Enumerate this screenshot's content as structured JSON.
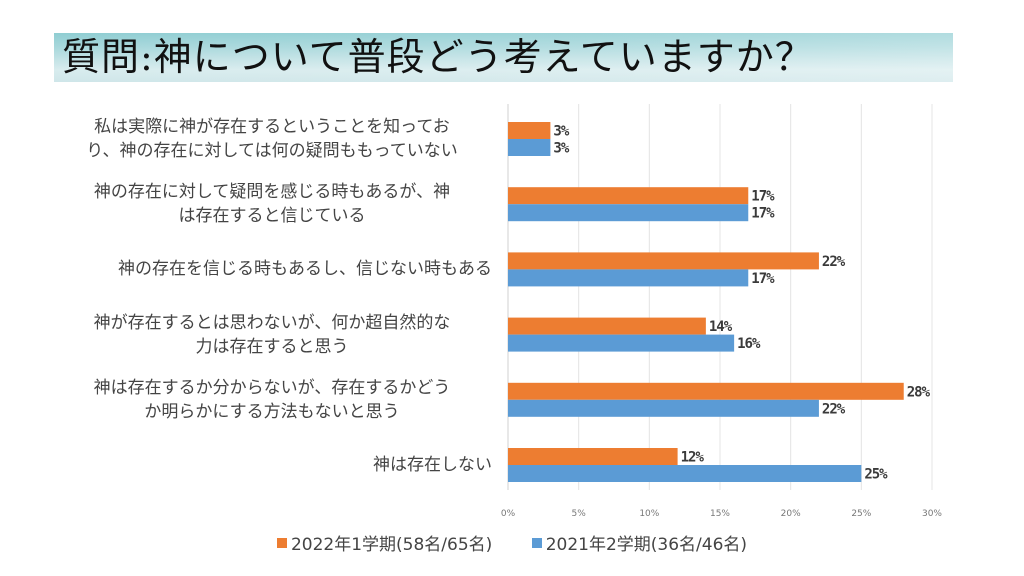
{
  "title": "質問:神について普段どう考えていますか？",
  "chart_data": {
    "type": "bar",
    "orientation": "horizontal",
    "title": "質問:神について普段どう考えていますか？",
    "categories": [
      "私は実際に神が存在するということを知っており、神の存在に対しては何の疑問ももっていない",
      "神の存在に対して疑問を感じる時もあるが、神は存在すると信じている",
      "神の存在を信じる時もあるし、信じない時もある",
      "神が存在するとは思わないが、何か超自然的な力は存在すると思う",
      "神は存在するか分からないが、存在するかどうか明らかにする方法もないと思う",
      "神は存在しない"
    ],
    "category_lines": [
      [
        "私は実際に神が存在するということを知ってお",
        "り、神の存在に対しては何の疑問ももっていない"
      ],
      [
        "神の存在に対して疑問を感じる時もあるが、神",
        "は存在すると信じている"
      ],
      [
        "神の存在を信じる時もあるし、信じない時もある"
      ],
      [
        "神が存在するとは思わないが、何か超自然的な",
        "力は存在すると思う"
      ],
      [
        "神は存在するか分からないが、存在するかどう",
        "か明らかにする方法もないと思う"
      ],
      [
        "神は存在しない"
      ]
    ],
    "series": [
      {
        "name": "2022年1学期(58名/65名)",
        "color": "#ED7D31",
        "values": [
          3,
          17,
          22,
          14,
          28,
          12
        ]
      },
      {
        "name": "2021年2学期(36名/46名)",
        "color": "#5B9BD5",
        "values": [
          3,
          17,
          17,
          16,
          22,
          25
        ]
      }
    ],
    "xlim": [
      0,
      30
    ],
    "xticks": [
      0,
      5,
      10,
      15,
      20,
      25,
      30
    ],
    "xtick_labels": [
      "0%",
      "5%",
      "10%",
      "15%",
      "20%",
      "25%",
      "30%"
    ],
    "value_suffix": "%",
    "xlabel": "",
    "ylabel": "",
    "grid": true,
    "legend_position": "bottom"
  }
}
